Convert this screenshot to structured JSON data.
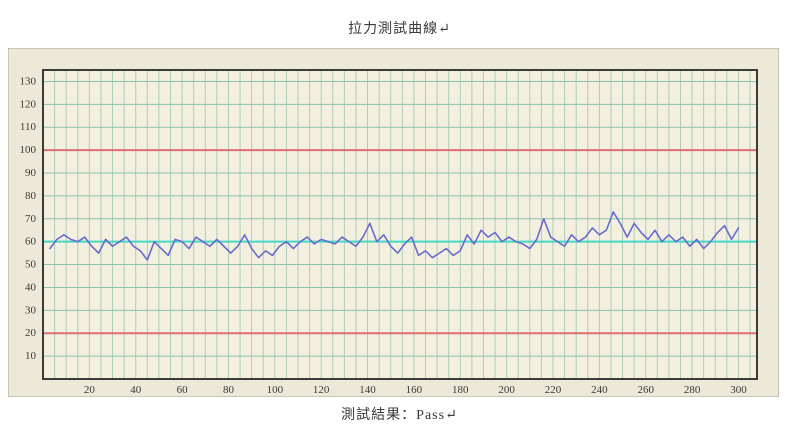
{
  "page": {
    "title": "拉力測試曲線↵",
    "result_caption": "測試結果：Pass↵"
  },
  "colors": {
    "page_bg": "#ffffff",
    "panel_bg": "#ece9d8",
    "panel_border": "#a8a395",
    "plot_bg": "#f3f0e0",
    "plot_border": "#3c3c3c",
    "grid_vertical": "#aecdbb",
    "grid_horizontal": "#8cc2ab",
    "limit_line": "#dd6f6f",
    "reference_line": "#44d9c6",
    "series_line": "#6a6ccc",
    "tick_label": "#3a3a3a"
  },
  "chart_data": {
    "type": "line",
    "title": "拉力測試曲線",
    "subtitle": "測試結果：Pass",
    "xlabel": "",
    "ylabel": "",
    "xlim": [
      0,
      308
    ],
    "ylim": [
      0,
      135
    ],
    "grid": {
      "on": true,
      "vertical_step": 5,
      "horizontal_step": 10
    },
    "legend": "none",
    "x_major_ticks": [
      20,
      40,
      60,
      80,
      100,
      120,
      140,
      160,
      180,
      200,
      220,
      240,
      260,
      280,
      300
    ],
    "y_major_ticks": [
      10,
      20,
      30,
      40,
      50,
      60,
      70,
      80,
      90,
      100,
      110,
      120,
      130
    ],
    "upper_limit": 100,
    "lower_limit": 20,
    "reference_value": 60,
    "series": [
      {
        "name": "拉力",
        "x": [
          3,
          6,
          9,
          12,
          15,
          18,
          21,
          24,
          27,
          30,
          33,
          36,
          39,
          42,
          45,
          48,
          51,
          54,
          57,
          60,
          63,
          66,
          69,
          72,
          75,
          78,
          81,
          84,
          87,
          90,
          93,
          96,
          99,
          102,
          105,
          108,
          111,
          114,
          117,
          120,
          123,
          126,
          129,
          132,
          135,
          138,
          141,
          144,
          147,
          150,
          153,
          156,
          159,
          162,
          165,
          168,
          171,
          174,
          177,
          180,
          183,
          186,
          189,
          192,
          195,
          198,
          201,
          204,
          207,
          210,
          213,
          216,
          219,
          222,
          225,
          228,
          231,
          234,
          237,
          240,
          243,
          246,
          249,
          252,
          255,
          258,
          261,
          264,
          267,
          270,
          273,
          276,
          279,
          282,
          285,
          288,
          291,
          294,
          297,
          300
        ],
        "y": [
          57,
          61,
          63,
          61,
          60,
          62,
          58,
          55,
          61,
          58,
          60,
          62,
          58,
          56,
          52,
          60,
          57,
          54,
          61,
          60,
          57,
          62,
          60,
          58,
          61,
          58,
          55,
          58,
          63,
          57,
          53,
          56,
          54,
          58,
          60,
          57,
          60,
          62,
          59,
          61,
          60,
          59,
          62,
          60,
          58,
          62,
          68,
          60,
          63,
          58,
          55,
          59,
          62,
          54,
          56,
          53,
          55,
          57,
          54,
          56,
          63,
          59,
          65,
          62,
          64,
          60,
          62,
          60,
          59,
          57,
          61,
          70,
          62,
          60,
          58,
          63,
          60,
          62,
          66,
          63,
          65,
          73,
          68,
          62,
          68,
          64,
          61,
          65,
          60,
          63,
          60,
          62,
          58,
          61,
          57,
          60,
          64,
          67,
          61,
          66
        ]
      }
    ]
  }
}
